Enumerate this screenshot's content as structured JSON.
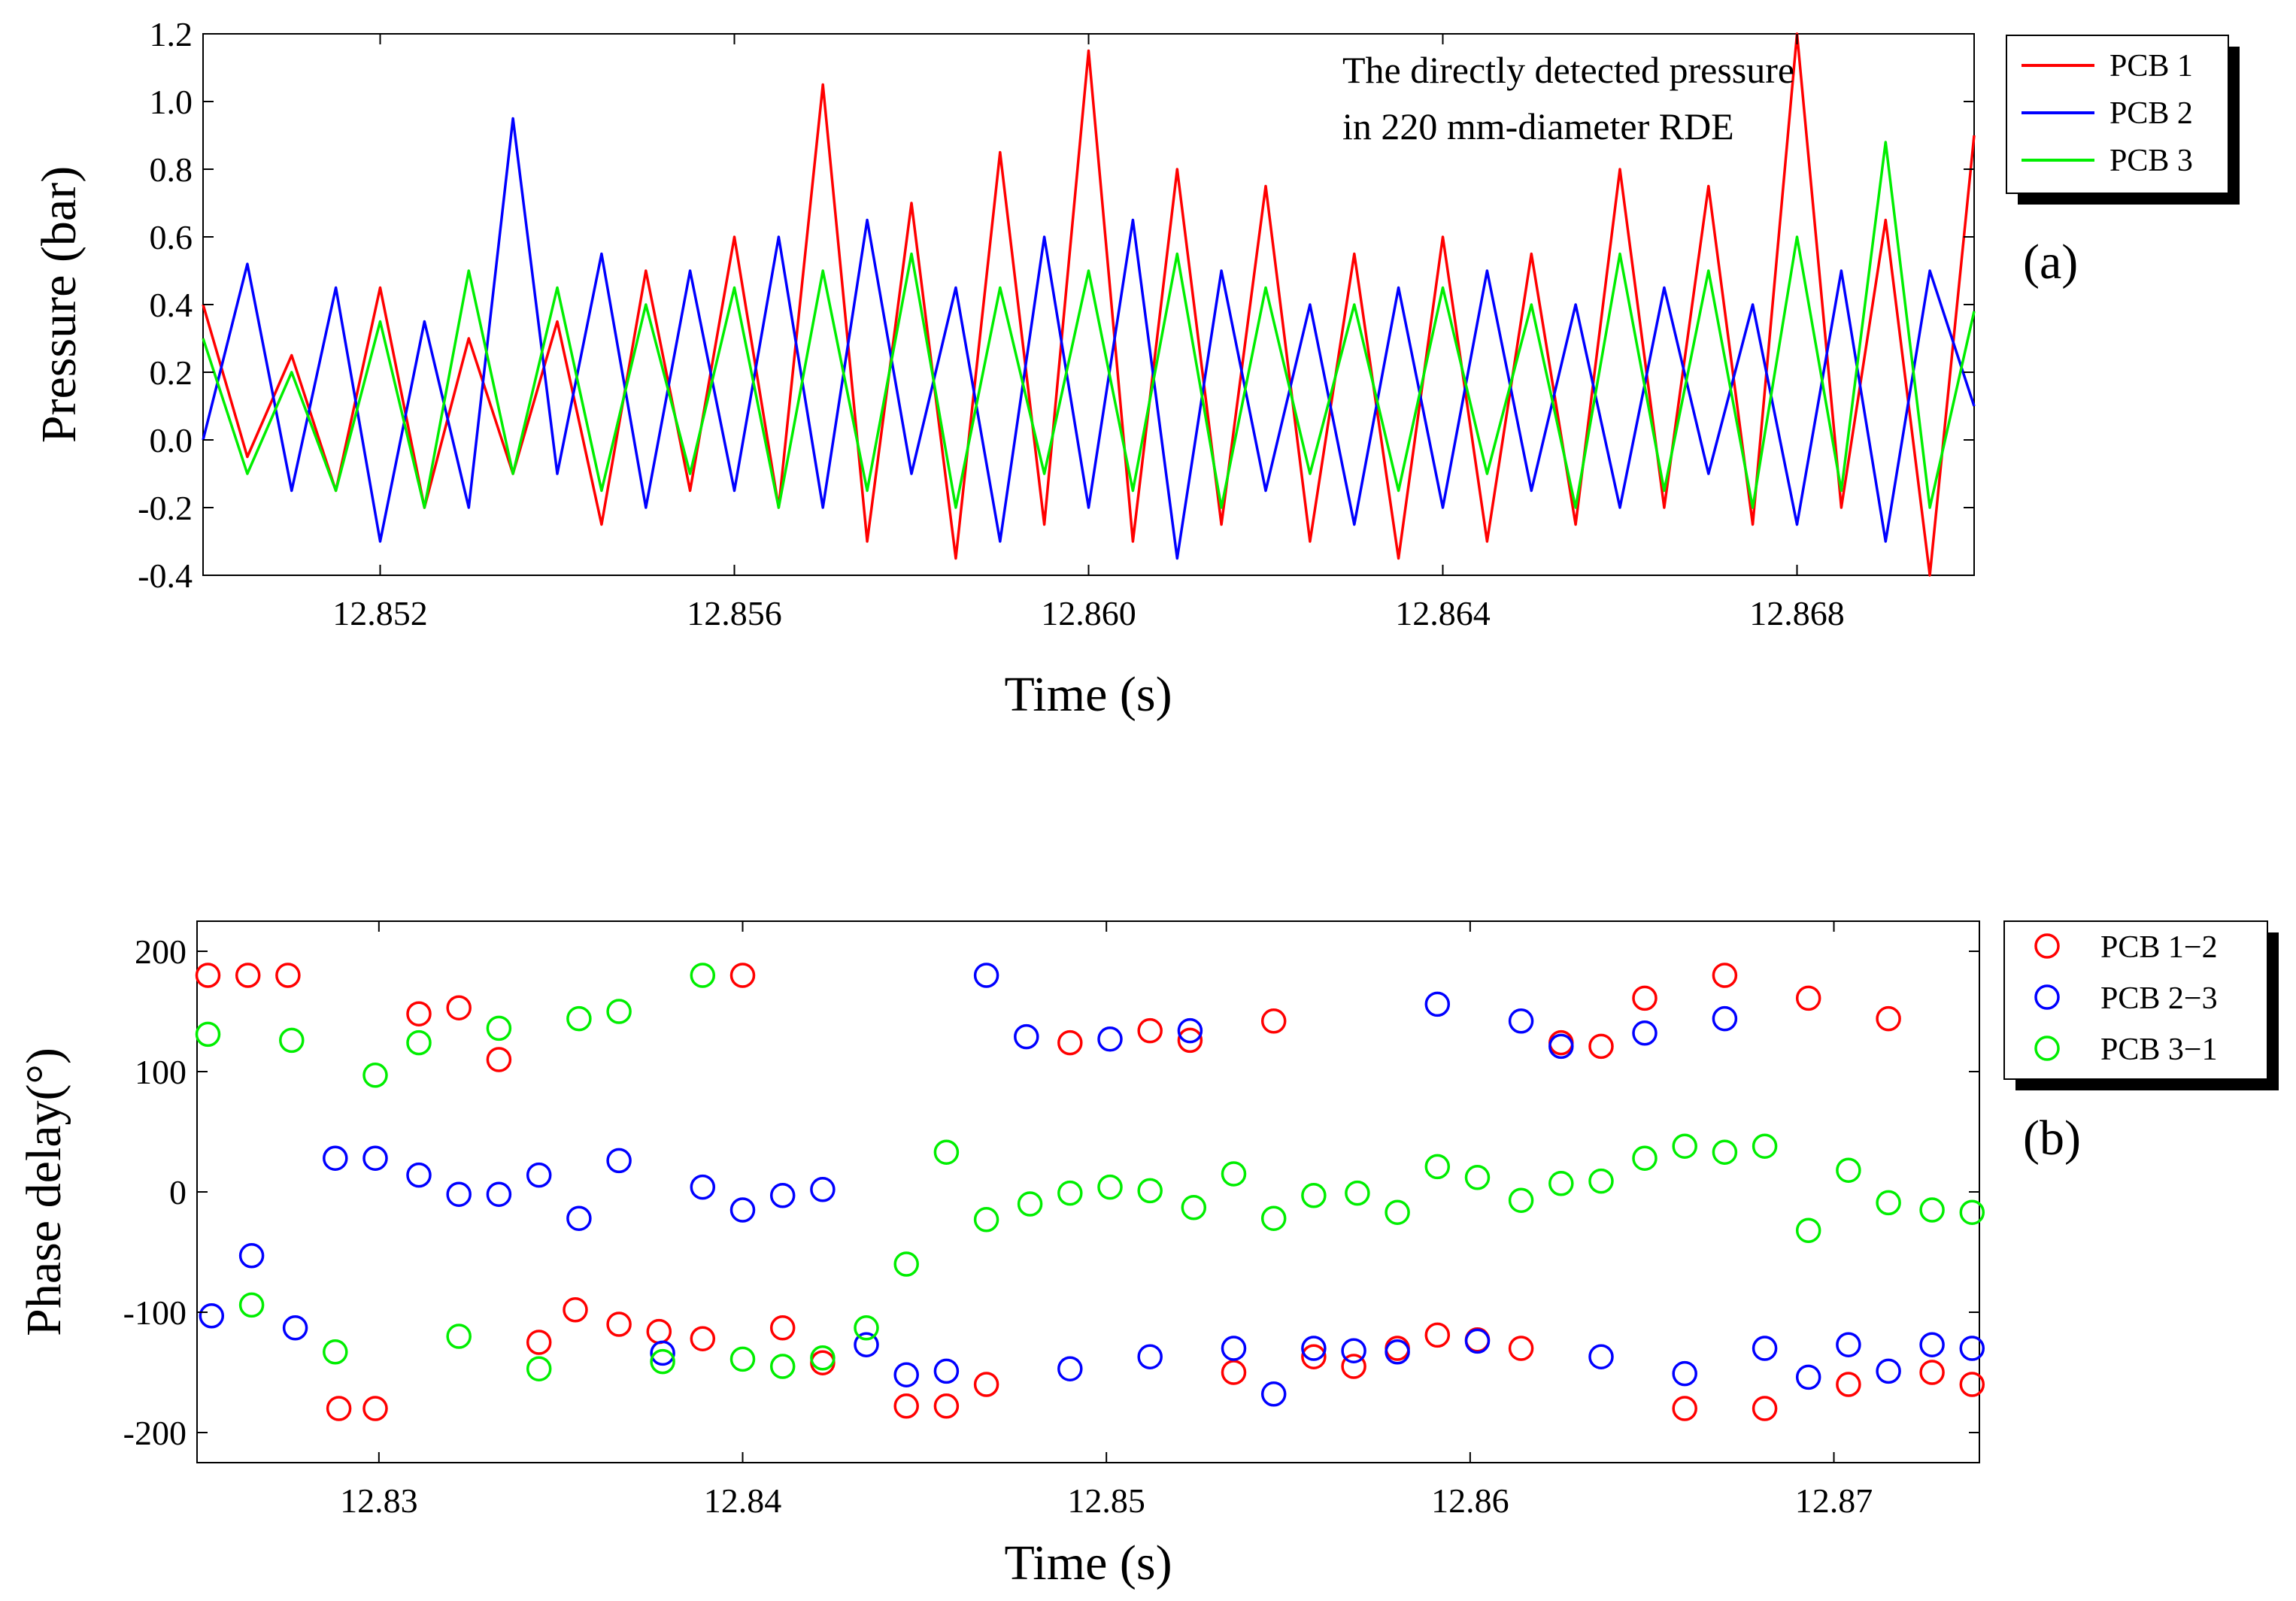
{
  "chart_data": [
    {
      "panel_label": "(a)",
      "type": "line",
      "xlabel": "Time (s)",
      "ylabel": "Pressure (bar)",
      "xlim": [
        12.85,
        12.87
      ],
      "ylim": [
        -0.4,
        1.2
      ],
      "x_ticks": [
        12.852,
        12.856,
        12.86,
        12.864,
        12.868
      ],
      "x_tick_labels": [
        "12.852",
        "12.856",
        "12.860",
        "12.864",
        "12.868"
      ],
      "y_ticks": [
        -0.4,
        -0.2,
        0.0,
        0.2,
        0.4,
        0.6,
        0.8,
        1.0,
        1.2
      ],
      "y_tick_labels": [
        "-0.4",
        "-0.2",
        "0.0",
        "0.2",
        "0.4",
        "0.6",
        "0.8",
        "1.0",
        "1.2"
      ],
      "annotation": [
        "The directly detected pressure",
        "in 220 mm-diameter RDE"
      ],
      "legend_position": "right-top (outside)",
      "grid": false,
      "series": [
        {
          "name": "PCB 1",
          "color": "#ff0000",
          "x": [
            12.85,
            12.8505,
            12.851,
            12.8515,
            12.852,
            12.8525,
            12.853,
            12.8535,
            12.854,
            12.8545,
            12.855,
            12.8555,
            12.856,
            12.8565,
            12.857,
            12.8575,
            12.858,
            12.8585,
            12.859,
            12.8595,
            12.86,
            12.8605,
            12.861,
            12.8615,
            12.862,
            12.8625,
            12.863,
            12.8635,
            12.864,
            12.8645,
            12.865,
            12.8655,
            12.866,
            12.8665,
            12.867,
            12.8675,
            12.868,
            12.8685,
            12.869,
            12.8695,
            12.87
          ],
          "y": [
            0.4,
            -0.05,
            0.25,
            -0.15,
            0.45,
            -0.2,
            0.3,
            -0.1,
            0.35,
            -0.25,
            0.5,
            -0.15,
            0.6,
            -0.2,
            1.05,
            -0.3,
            0.7,
            -0.35,
            0.85,
            -0.25,
            1.15,
            -0.3,
            0.8,
            -0.25,
            0.75,
            -0.3,
            0.55,
            -0.35,
            0.6,
            -0.3,
            0.55,
            -0.25,
            0.8,
            -0.2,
            0.75,
            -0.25,
            1.2,
            -0.2,
            0.65,
            -0.4,
            0.9
          ]
        },
        {
          "name": "PCB 2",
          "color": "#0000ff",
          "x": [
            12.85,
            12.8505,
            12.851,
            12.8515,
            12.852,
            12.8525,
            12.853,
            12.8535,
            12.854,
            12.8545,
            12.855,
            12.8555,
            12.856,
            12.8565,
            12.857,
            12.8575,
            12.858,
            12.8585,
            12.859,
            12.8595,
            12.86,
            12.8605,
            12.861,
            12.8615,
            12.862,
            12.8625,
            12.863,
            12.8635,
            12.864,
            12.8645,
            12.865,
            12.8655,
            12.866,
            12.8665,
            12.867,
            12.8675,
            12.868,
            12.8685,
            12.869,
            12.8695,
            12.87
          ],
          "y": [
            0.0,
            0.52,
            -0.15,
            0.45,
            -0.3,
            0.35,
            -0.2,
            0.95,
            -0.1,
            0.55,
            -0.2,
            0.5,
            -0.15,
            0.6,
            -0.2,
            0.65,
            -0.1,
            0.45,
            -0.3,
            0.6,
            -0.2,
            0.65,
            -0.35,
            0.5,
            -0.15,
            0.4,
            -0.25,
            0.45,
            -0.2,
            0.5,
            -0.15,
            0.4,
            -0.2,
            0.45,
            -0.1,
            0.4,
            -0.25,
            0.5,
            -0.3,
            0.5,
            0.1
          ]
        },
        {
          "name": "PCB 3",
          "color": "#00ee00",
          "x": [
            12.85,
            12.8505,
            12.851,
            12.8515,
            12.852,
            12.8525,
            12.853,
            12.8535,
            12.854,
            12.8545,
            12.855,
            12.8555,
            12.856,
            12.8565,
            12.857,
            12.8575,
            12.858,
            12.8585,
            12.859,
            12.8595,
            12.86,
            12.8605,
            12.861,
            12.8615,
            12.862,
            12.8625,
            12.863,
            12.8635,
            12.864,
            12.8645,
            12.865,
            12.8655,
            12.866,
            12.8665,
            12.867,
            12.8675,
            12.868,
            12.8685,
            12.869,
            12.8695,
            12.87
          ],
          "y": [
            0.3,
            -0.1,
            0.2,
            -0.15,
            0.35,
            -0.2,
            0.5,
            -0.1,
            0.45,
            -0.15,
            0.4,
            -0.1,
            0.45,
            -0.2,
            0.5,
            -0.15,
            0.55,
            -0.2,
            0.45,
            -0.1,
            0.5,
            -0.15,
            0.55,
            -0.2,
            0.45,
            -0.1,
            0.4,
            -0.15,
            0.45,
            -0.1,
            0.4,
            -0.2,
            0.55,
            -0.15,
            0.5,
            -0.2,
            0.6,
            -0.15,
            0.88,
            -0.2,
            0.38
          ]
        }
      ]
    },
    {
      "panel_label": "(b)",
      "type": "scatter",
      "xlabel": "Time (s)",
      "ylabel": "Phase delay(°)",
      "xlim": [
        12.825,
        12.874
      ],
      "ylim": [
        -225,
        225
      ],
      "x_ticks": [
        12.83,
        12.84,
        12.85,
        12.86,
        12.87
      ],
      "x_tick_labels": [
        "12.83",
        "12.84",
        "12.85",
        "12.86",
        "12.87"
      ],
      "y_ticks": [
        -200,
        -100,
        0,
        100,
        200
      ],
      "y_tick_labels": [
        "-200",
        "-100",
        "0",
        "100",
        "200"
      ],
      "legend_position": "right-top (outside)",
      "grid": false,
      "marker": "open-circle",
      "series": [
        {
          "name": "PCB 1−2",
          "color": "#ff0000",
          "x": [
            12.8253,
            12.8264,
            12.8275,
            12.8289,
            12.8299,
            12.8311,
            12.8322,
            12.8333,
            12.8344,
            12.8354,
            12.8366,
            12.8377,
            12.8389,
            12.84,
            12.8411,
            12.8422,
            12.8445,
            12.8456,
            12.8467,
            12.849,
            12.8512,
            12.8523,
            12.8535,
            12.8546,
            12.8557,
            12.8568,
            12.858,
            12.8591,
            12.8602,
            12.8614,
            12.8625,
            12.8636,
            12.8648,
            12.8659,
            12.867,
            12.8681,
            12.8693,
            12.8704,
            12.8715,
            12.8727,
            12.8738
          ],
          "y": [
            180,
            180,
            180,
            -180,
            -180,
            148,
            153,
            110,
            -125,
            -98,
            -110,
            -116,
            -122,
            180,
            -113,
            -142,
            -178,
            -178,
            -160,
            124,
            134,
            126,
            -150,
            142,
            -137,
            -145,
            -130,
            -119,
            -123,
            -130,
            124,
            121,
            161,
            -180,
            180,
            -180,
            161,
            -160,
            144,
            -150,
            -160
          ]
        },
        {
          "name": "PCB 2−3",
          "color": "#0000ff",
          "x": [
            12.8254,
            12.8265,
            12.8277,
            12.8288,
            12.8299,
            12.8311,
            12.8322,
            12.8333,
            12.8344,
            12.8355,
            12.8366,
            12.8378,
            12.8389,
            12.84,
            12.8411,
            12.8422,
            12.8434,
            12.8445,
            12.8456,
            12.8467,
            12.8478,
            12.849,
            12.8501,
            12.8512,
            12.8523,
            12.8535,
            12.8546,
            12.8557,
            12.8568,
            12.858,
            12.8591,
            12.8602,
            12.8614,
            12.8625,
            12.8636,
            12.8648,
            12.8659,
            12.867,
            12.8681,
            12.8693,
            12.8704,
            12.8715,
            12.8727,
            12.8738
          ],
          "y": [
            -103,
            -53,
            -113,
            28,
            28,
            14,
            -2,
            -2,
            14,
            -22,
            26,
            -134,
            4,
            -15,
            -3,
            2,
            -127,
            -152,
            -149,
            180,
            129,
            -147,
            127,
            -137,
            134,
            -130,
            -168,
            -130,
            -132,
            -133,
            156,
            -124,
            142,
            121,
            -137,
            132,
            -151,
            144,
            -130,
            -154,
            -127,
            -149,
            -127,
            -130
          ]
        },
        {
          "name": "PCB 3−1",
          "color": "#00ee00",
          "x": [
            12.8253,
            12.8265,
            12.8276,
            12.8288,
            12.8299,
            12.8311,
            12.8322,
            12.8333,
            12.8344,
            12.8355,
            12.8366,
            12.8378,
            12.8389,
            12.84,
            12.8411,
            12.8422,
            12.8434,
            12.8445,
            12.8456,
            12.8467,
            12.8479,
            12.849,
            12.8501,
            12.8512,
            12.8524,
            12.8535,
            12.8546,
            12.8557,
            12.8569,
            12.858,
            12.8591,
            12.8602,
            12.8614,
            12.8625,
            12.8636,
            12.8648,
            12.8659,
            12.867,
            12.8681,
            12.8693,
            12.8704,
            12.8715,
            12.8727,
            12.8738
          ],
          "y": [
            131,
            -94,
            126,
            -133,
            97,
            124,
            -120,
            136,
            -147,
            144,
            150,
            -141,
            180,
            -139,
            -145,
            -138,
            -113,
            -60,
            33,
            -23,
            -10,
            -1,
            4,
            1,
            -13,
            15,
            -22,
            -3,
            -1,
            -17,
            21,
            12,
            -7,
            7,
            9,
            28,
            38,
            33,
            38,
            -32,
            18,
            -9,
            -15,
            -17
          ]
        }
      ]
    }
  ]
}
